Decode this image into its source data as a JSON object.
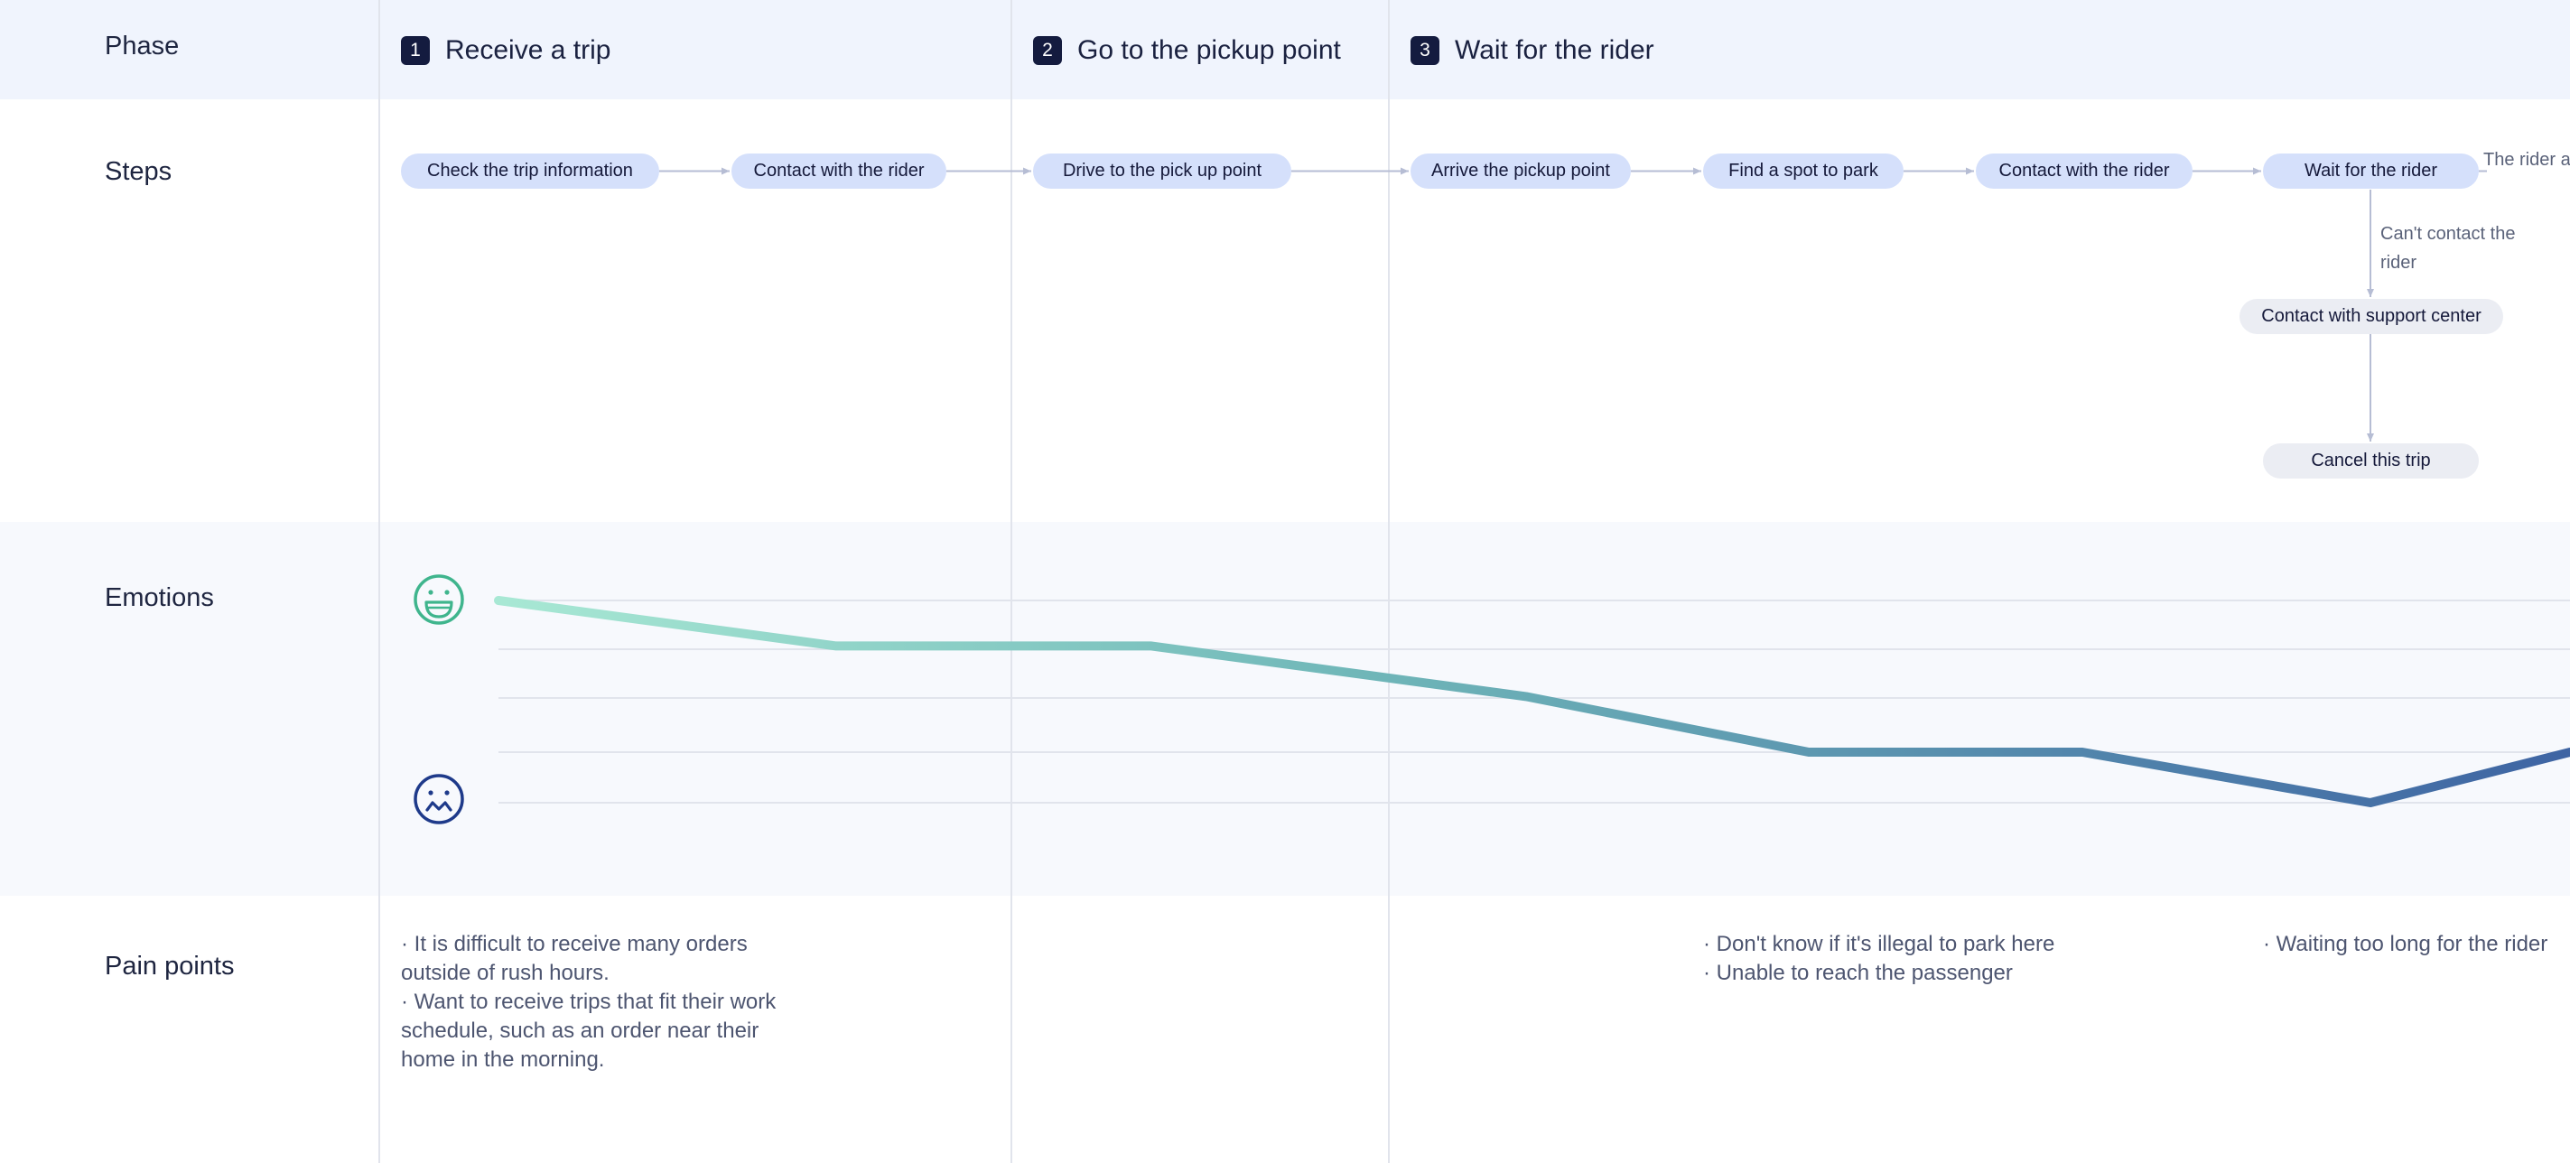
{
  "rows": {
    "phase": "Phase",
    "steps": "Steps",
    "emotions": "Emotions",
    "pain_points": "Pain points"
  },
  "phases": [
    {
      "number": "1",
      "title": "Receive a trip"
    },
    {
      "number": "2",
      "title": "Go to the pickup point"
    },
    {
      "number": "3",
      "title": "Wait for the rider"
    }
  ],
  "steps": [
    "Check the trip information",
    "Contact with the rider",
    "Drive to the pick up point",
    "Arrive the pickup point",
    "Find a spot to park",
    "Contact with the rider",
    "Wait for the rider"
  ],
  "branch": {
    "note": "Can't contact the rider",
    "support": "Contact with support center",
    "cancel": "Cancel this trip",
    "continue_note": "The rider arrives"
  },
  "emotions": {
    "happy_icon": "happy-face-icon",
    "sad_icon": "sad-face-icon",
    "levels": [
      5,
      4.1,
      4.1,
      3.1,
      2.0,
      2.0,
      1.0,
      2.0
    ],
    "colors": {
      "start": "#a8e8d4",
      "mid": "#6fb6b8",
      "end": "#3e64a3"
    }
  },
  "pain_points": [
    "· It is difficult to receive many orders outside of rush hours.\n· Want to receive trips that fit their work schedule, such as an order near their home in the morning.",
    "· Don't know if it's illegal to park here\n· Unable to reach the passenger",
    "· Waiting too long for the rider"
  ]
}
